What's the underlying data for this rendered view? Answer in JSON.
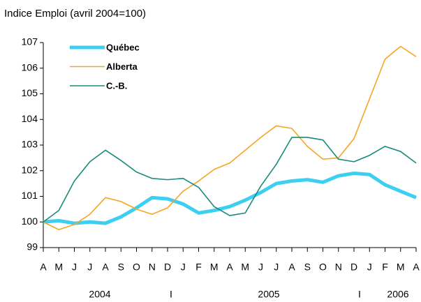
{
  "chart_data": {
    "type": "line",
    "title": "Indice Emploi (avril 2004=100)",
    "categories": [
      "A",
      "M",
      "J",
      "J",
      "A",
      "S",
      "O",
      "N",
      "D",
      "J",
      "F",
      "M",
      "A",
      "M",
      "J",
      "J",
      "A",
      "S",
      "O",
      "N",
      "D",
      "J",
      "F",
      "M",
      "A"
    ],
    "year_labels": [
      "2004",
      "I",
      "2005",
      "I",
      "2006"
    ],
    "ylim": [
      99,
      107
    ],
    "yticks": [
      99,
      100,
      101,
      102,
      103,
      104,
      105,
      106,
      107
    ],
    "legend": "upper left",
    "series": [
      {
        "name": "Québec",
        "color": "#3dcff2",
        "values": [
          100,
          100.05,
          99.95,
          100.0,
          99.95,
          100.2,
          100.55,
          100.95,
          100.9,
          100.7,
          100.35,
          100.45,
          100.6,
          100.85,
          101.15,
          101.5,
          101.6,
          101.65,
          101.55,
          101.8,
          101.9,
          101.85,
          101.45,
          101.2,
          100.95
        ]
      },
      {
        "name": "Alberta",
        "color": "#f5a623",
        "values": [
          100,
          99.7,
          99.9,
          100.3,
          100.95,
          100.8,
          100.5,
          100.3,
          100.55,
          101.2,
          101.6,
          102.05,
          102.3,
          102.8,
          103.3,
          103.75,
          103.65,
          102.95,
          102.45,
          102.5,
          103.25,
          104.8,
          106.35,
          106.85,
          106.45
        ]
      },
      {
        "name": "C.-B.",
        "color": "#1a8a7a",
        "values": [
          100,
          100.45,
          101.6,
          102.35,
          102.8,
          102.4,
          101.95,
          101.7,
          101.65,
          101.7,
          101.35,
          100.6,
          100.25,
          100.35,
          101.4,
          102.25,
          103.3,
          103.3,
          103.2,
          102.45,
          102.35,
          102.6,
          102.95,
          102.75,
          102.3
        ]
      }
    ]
  }
}
